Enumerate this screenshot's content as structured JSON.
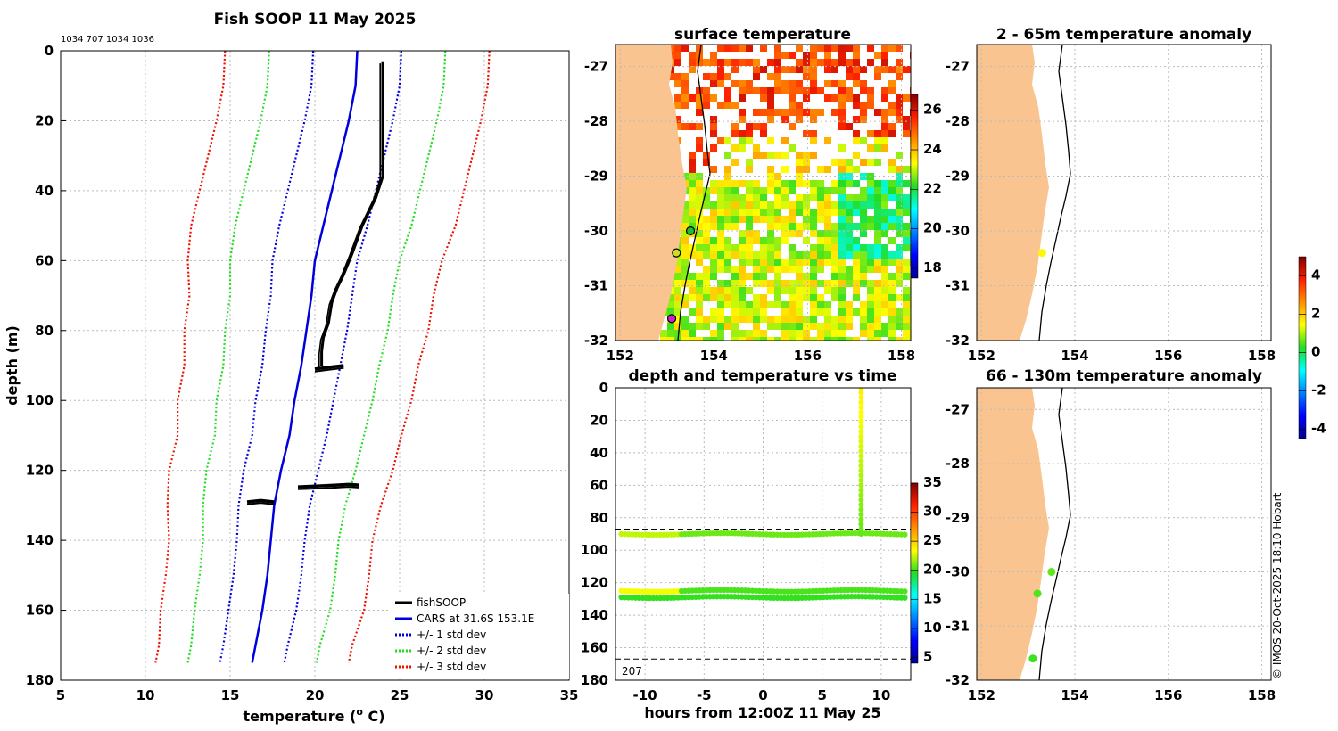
{
  "chart_data": [
    {
      "type": "line",
      "title": "Fish SOOP 11 May 2025",
      "subtitle": "1034 707 1034 1036",
      "xlabel": "temperature (",
      "xlabel_sup": "o",
      "xlabel_end": " C)",
      "ylabel": "depth (m)",
      "xlim": [
        5,
        35
      ],
      "ylim": [
        0,
        180
      ],
      "x_ticks": [
        "5",
        "10",
        "15",
        "20",
        "25",
        "30",
        "35"
      ],
      "y_ticks": [
        "0",
        "20",
        "40",
        "60",
        "80",
        "100",
        "120",
        "140",
        "160",
        "180"
      ],
      "colors": {
        "fish": "#000000",
        "cars": "#0000dd",
        "std1": "#0000dd",
        "std2": "#22dd22",
        "std3": "#ee1100"
      },
      "depth": [
        0,
        10,
        20,
        30,
        40,
        50,
        60,
        70,
        80,
        90,
        100,
        110,
        120,
        130,
        140,
        150,
        160,
        170,
        175
      ],
      "cars_temp": [
        22.5,
        22.4,
        22.0,
        21.5,
        21.0,
        20.5,
        20.0,
        19.8,
        19.5,
        19.2,
        18.8,
        18.5,
        18.0,
        17.6,
        17.4,
        17.2,
        16.9,
        16.5,
        16.3
      ],
      "std_width": [
        2.6,
        2.6,
        2.6,
        2.6,
        2.6,
        2.6,
        2.5,
        2.4,
        2.4,
        2.3,
        2.3,
        2.2,
        2.2,
        2.1,
        2.0,
        2.0,
        2.0,
        1.9,
        1.9
      ],
      "fish_main": [
        [
          24.0,
          3
        ],
        [
          24.0,
          28
        ],
        [
          24.0,
          36
        ],
        [
          23.6,
          42
        ],
        [
          22.8,
          50
        ],
        [
          22.2,
          58
        ],
        [
          21.7,
          64
        ],
        [
          21.3,
          68
        ],
        [
          21.0,
          72
        ],
        [
          20.8,
          78
        ],
        [
          20.5,
          82
        ],
        [
          20.4,
          86
        ],
        [
          20.4,
          90
        ]
      ],
      "fish_segments": [
        [
          [
            20.0,
            91
          ],
          [
            20.8,
            90.5
          ],
          [
            21.7,
            90
          ]
        ],
        [
          [
            19.0,
            124.7
          ],
          [
            20.5,
            124.4
          ],
          [
            22.0,
            124.0
          ],
          [
            22.6,
            124.2
          ]
        ],
        [
          [
            16.0,
            129
          ],
          [
            16.8,
            128.6
          ],
          [
            17.6,
            129
          ]
        ]
      ],
      "legend": [
        "fishSOOP",
        "CARS at 31.6S 153.1E",
        "+/- 1 std dev",
        "+/- 2 std dev",
        "+/- 3 std dev"
      ]
    },
    {
      "type": "heatmap",
      "title": "surface temperature",
      "x_ticks": [
        "152",
        "154",
        "156",
        "158"
      ],
      "y_ticks": [
        "-27",
        "-28",
        "-29",
        "-30",
        "-31",
        "-32"
      ],
      "xlim": [
        151.9,
        158.2
      ],
      "ylim": [
        -32.0,
        -26.6
      ],
      "colorbar_ticks": [
        "18",
        "20",
        "22",
        "24",
        "26"
      ],
      "colorbar_range": [
        17.5,
        26.8
      ],
      "markers": [
        {
          "lon": 153.5,
          "lat": -30.0,
          "color": "#22bb33"
        },
        {
          "lon": 153.2,
          "lat": -30.4,
          "color": "#ccdd22"
        },
        {
          "lon": 153.1,
          "lat": -31.6,
          "color": "#cc22cc"
        }
      ]
    },
    {
      "type": "scatter",
      "title": "depth and temperature vs time",
      "xlabel": "hours from 12:00Z 11 May 25",
      "x_ticks": [
        "-10",
        "-5",
        "0",
        "5",
        "10"
      ],
      "y_ticks": [
        "0",
        "20",
        "40",
        "60",
        "80",
        "100",
        "120",
        "140",
        "160",
        "180"
      ],
      "xlim": [
        -12.5,
        12.5
      ],
      "ylim": [
        0,
        180
      ],
      "dashed_depths": [
        87,
        167
      ],
      "corner_label": "207",
      "colorbar_ticks": [
        "5",
        "10",
        "15",
        "20",
        "25",
        "30",
        "35"
      ],
      "colorbar_range": [
        4,
        35
      ],
      "series": [
        {
          "name": "shallow",
          "depth": 90,
          "t_start": -12,
          "t_end": 12,
          "temp": 20.8
        },
        {
          "name": "mid",
          "depth": 125,
          "t_start": -12,
          "t_end": 12,
          "temp": 20.2
        },
        {
          "name": "deep",
          "depth": 129,
          "t_start": -12,
          "t_end": 12,
          "temp": 19.8
        },
        {
          "name": "cast",
          "time": 8.3,
          "depth_top": 0,
          "depth_bottom": 90,
          "temp_top": 24.0,
          "temp_bottom": 20.6
        }
      ]
    },
    {
      "type": "scatter",
      "title": "2 - 65m temperature anomaly",
      "x_ticks": [
        "152",
        "154",
        "156",
        "158"
      ],
      "y_ticks": [
        "-27",
        "-28",
        "-29",
        "-30",
        "-31",
        "-32"
      ],
      "xlim": [
        151.9,
        158.2
      ],
      "ylim": [
        -32.0,
        -26.6
      ],
      "points": [
        {
          "lon": 153.3,
          "lat": -30.4,
          "anomaly": 1.5
        }
      ]
    },
    {
      "type": "scatter",
      "title": "66 - 130m temperature anomaly",
      "x_ticks": [
        "152",
        "154",
        "156",
        "158"
      ],
      "y_ticks": [
        "-27",
        "-28",
        "-29",
        "-30",
        "-31",
        "-32"
      ],
      "xlim": [
        151.9,
        158.2
      ],
      "ylim": [
        -32.0,
        -26.6
      ],
      "points": [
        {
          "lon": 153.5,
          "lat": -30.0,
          "anomaly": 0.6
        },
        {
          "lon": 153.2,
          "lat": -30.4,
          "anomaly": 0.5
        },
        {
          "lon": 153.1,
          "lat": -31.6,
          "anomaly": 0.4
        }
      ],
      "colorbar_ticks": [
        "-4",
        "-2",
        "0",
        "2",
        "4"
      ],
      "colorbar_range": [
        -4.5,
        5
      ]
    }
  ],
  "credit": "© IMOS 20-Oct-2025 18:10 Hobart"
}
